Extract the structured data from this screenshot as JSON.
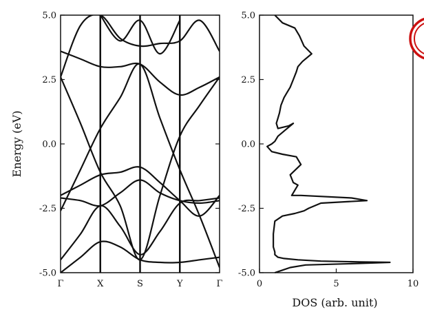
{
  "chart_data": [
    {
      "type": "line",
      "title": "",
      "xlabel": "",
      "ylabel": "Energy (eV)",
      "ylim": [
        -5.0,
        5.0
      ],
      "yticks": [
        "5.0",
        "2.5",
        "0.0",
        "-2.5",
        "-5.0"
      ],
      "kpoints": [
        "Γ",
        "X",
        "S",
        "Y",
        "Γ"
      ],
      "kpoint_positions": [
        0,
        1,
        2,
        3,
        4
      ],
      "grid": false,
      "bands": [
        {
          "k": [
            0,
            0.5,
            1,
            1.5,
            2,
            2.5,
            3,
            3.5,
            4
          ],
          "e": [
            -5.0,
            -4.4,
            -3.8,
            -4.0,
            -4.5,
            -4.6,
            -4.6,
            -4.5,
            -4.4
          ]
        },
        {
          "k": [
            0,
            0.5,
            1,
            1.5,
            2,
            2.5,
            3,
            3.5,
            4
          ],
          "e": [
            -4.5,
            -3.5,
            -2.4,
            -3.2,
            -4.3,
            -3.4,
            -2.3,
            -2.2,
            -2.1
          ]
        },
        {
          "k": [
            0,
            0.5,
            1,
            1.5,
            2,
            2.5,
            3,
            3.5,
            4
          ],
          "e": [
            -2.1,
            -2.2,
            -2.4,
            -1.9,
            -1.4,
            -1.9,
            -2.2,
            -2.3,
            -2.2
          ]
        },
        {
          "k": [
            0,
            0.5,
            1,
            1.5,
            2,
            2.5,
            3,
            3.5,
            4
          ],
          "e": [
            -2.0,
            -1.6,
            -1.2,
            -1.1,
            -0.9,
            -1.5,
            -2.2,
            -2.8,
            -2.0
          ]
        },
        {
          "k": [
            0,
            0.5,
            1,
            1.5,
            2,
            2.5,
            3,
            3.5,
            4
          ],
          "e": [
            -2.6,
            -1.0,
            0.6,
            1.8,
            3.1,
            1.0,
            -1.0,
            -2.8,
            -4.8
          ]
        },
        {
          "k": [
            0,
            0.5,
            1,
            1.5,
            2,
            2.5,
            3,
            3.5,
            4
          ],
          "e": [
            2.6,
            0.8,
            -1.1,
            -2.4,
            -4.5,
            -2.0,
            0.3,
            1.5,
            2.6
          ]
        },
        {
          "k": [
            0,
            0.5,
            1,
            1.5,
            2,
            2.5,
            3,
            3.5,
            4
          ],
          "e": [
            3.6,
            3.3,
            3.0,
            3.0,
            3.1,
            2.4,
            1.9,
            2.2,
            2.6
          ]
        },
        {
          "k": [
            0,
            0.5,
            1,
            1.5,
            2,
            2.5,
            3,
            3.5,
            4
          ],
          "e": [
            2.6,
            4.6,
            5.0,
            4.1,
            3.8,
            3.9,
            4.0,
            4.8,
            3.6
          ]
        },
        {
          "k": [
            1,
            1.5,
            2,
            2.5,
            3
          ],
          "e": [
            5.0,
            4.0,
            4.8,
            3.5,
            4.8
          ]
        }
      ]
    },
    {
      "type": "line",
      "title": "",
      "xlabel": "DOS (arb. unit)",
      "ylabel": "",
      "xlim": [
        0,
        10
      ],
      "ylim": [
        -5.0,
        5.0
      ],
      "xticks": [
        "0",
        "5",
        "10"
      ],
      "yticks": [
        "5.0",
        "2.5",
        "0.0",
        "-2.5",
        "-5.0"
      ],
      "grid": false,
      "series": [
        {
          "x": [
            1.0,
            1.5,
            2.3,
            2.6,
            2.9,
            3.4,
            2.8,
            2.5,
            2.4,
            2.2,
            2.0,
            1.8,
            1.6,
            1.4,
            1.3,
            1.2,
            1.1,
            1.2,
            1.9,
            2.2,
            1.6,
            1.2,
            1.0,
            0.8,
            0.5,
            0.8,
            1.5,
            2.4,
            2.7,
            2.0,
            2.2,
            2.5,
            2.3,
            2.2,
            2.1,
            2.7,
            6.0,
            7.0,
            4.0,
            3.2,
            2.9,
            2.3,
            1.5,
            1.0,
            0.9,
            0.9,
            1.0,
            1.0,
            1.2,
            1.6,
            2.5,
            4.0,
            6.5,
            8.5,
            6.0,
            3.0,
            2.0,
            1.5,
            1.0
          ],
          "y": [
            5.0,
            4.7,
            4.5,
            4.2,
            3.8,
            3.5,
            3.2,
            3.0,
            2.8,
            2.5,
            2.2,
            2.0,
            1.8,
            1.5,
            1.2,
            1.0,
            0.8,
            0.6,
            0.7,
            0.8,
            0.5,
            0.3,
            0.1,
            0.0,
            -0.1,
            -0.3,
            -0.4,
            -0.5,
            -0.8,
            -1.2,
            -1.5,
            -1.6,
            -1.8,
            -1.9,
            -2.0,
            -2.0,
            -2.1,
            -2.2,
            -2.3,
            -2.5,
            -2.6,
            -2.7,
            -2.8,
            -3.0,
            -3.5,
            -4.0,
            -4.2,
            -4.3,
            -4.4,
            -4.45,
            -4.5,
            -4.55,
            -4.58,
            -4.6,
            -4.65,
            -4.7,
            -4.8,
            -4.9,
            -5.0
          ]
        }
      ]
    }
  ]
}
